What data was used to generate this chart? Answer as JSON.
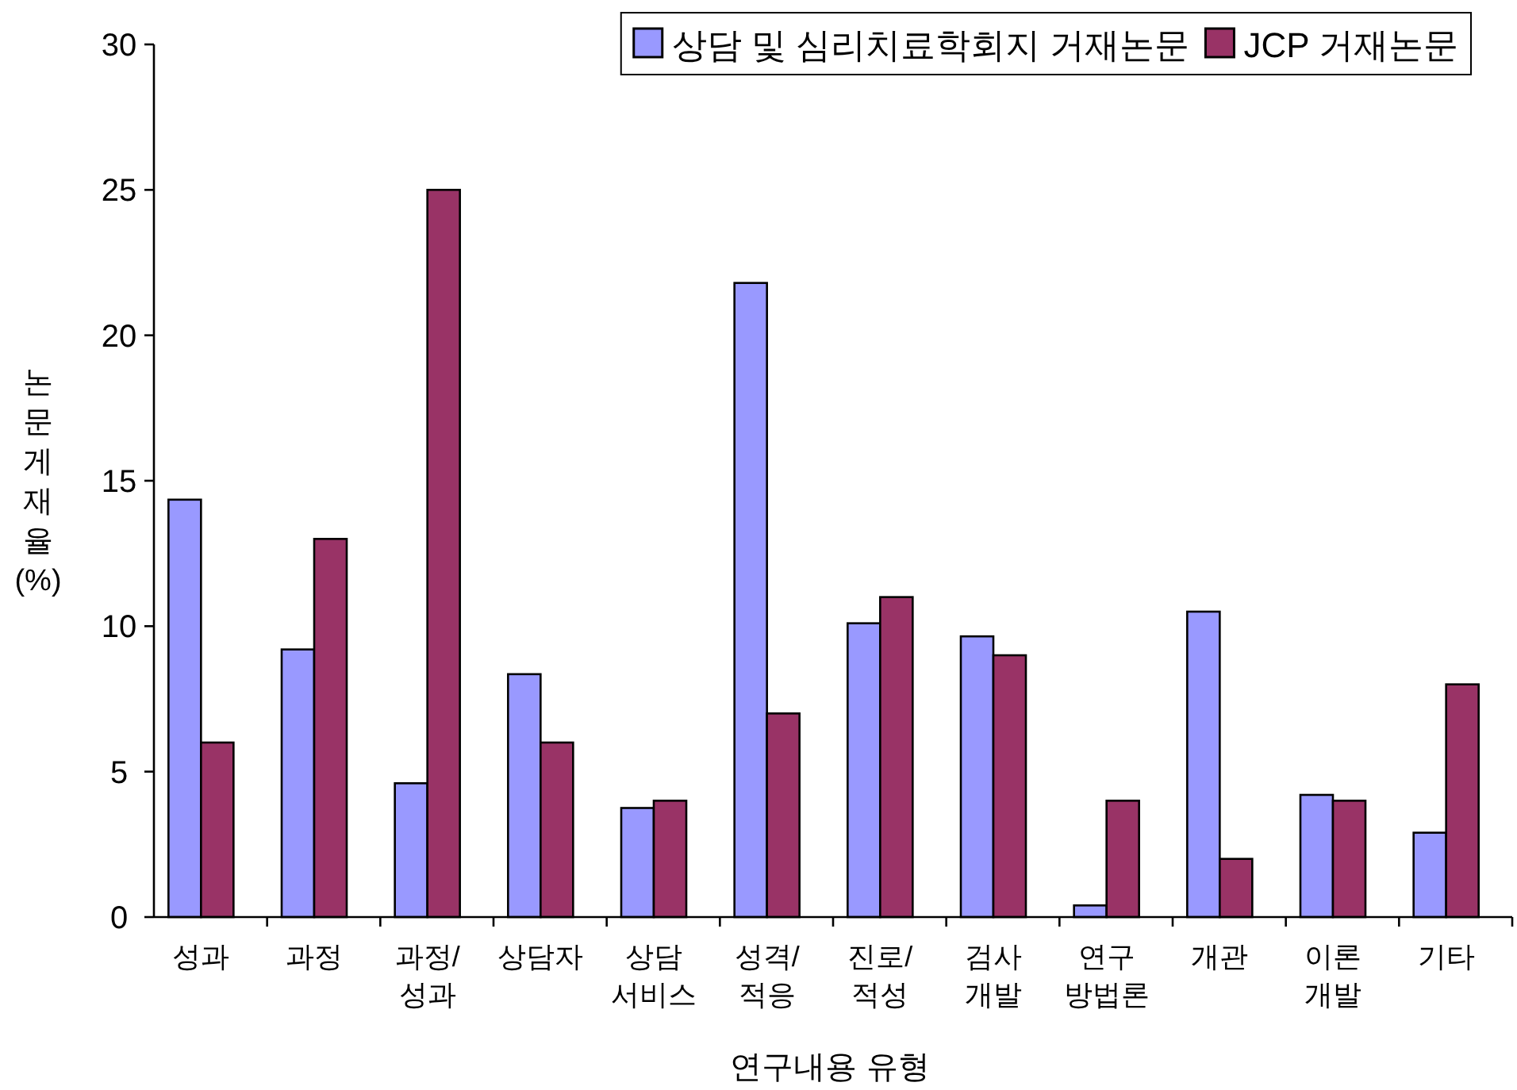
{
  "chart_data": {
    "type": "bar",
    "xlabel": "연구내용 유형",
    "ylabel": "논문게재율(%)",
    "categories": [
      "성과",
      "과정",
      "과정/\n성과",
      "상담자",
      "상담\n서비스",
      "성격/\n적응",
      "진로/\n적성",
      "검사\n개발",
      "연구\n방법론",
      "개관",
      "이론\n개발",
      "기타"
    ],
    "series": [
      {
        "name": "상담 및 심리치료학회지 거재논문",
        "color": "#9999ff",
        "values": [
          14.35,
          9.2,
          4.6,
          8.35,
          3.75,
          21.8,
          10.1,
          9.65,
          0.4,
          10.5,
          4.2,
          2.9
        ]
      },
      {
        "name": "JCP 거재논문",
        "color": "#993366",
        "values": [
          6,
          13,
          25,
          6,
          4,
          7,
          11,
          9,
          4,
          2,
          4,
          8
        ]
      }
    ],
    "ylim": [
      0,
      30
    ],
    "yticks": [
      0,
      5,
      10,
      15,
      20,
      25,
      30
    ],
    "grid": false,
    "legend": "top right"
  }
}
